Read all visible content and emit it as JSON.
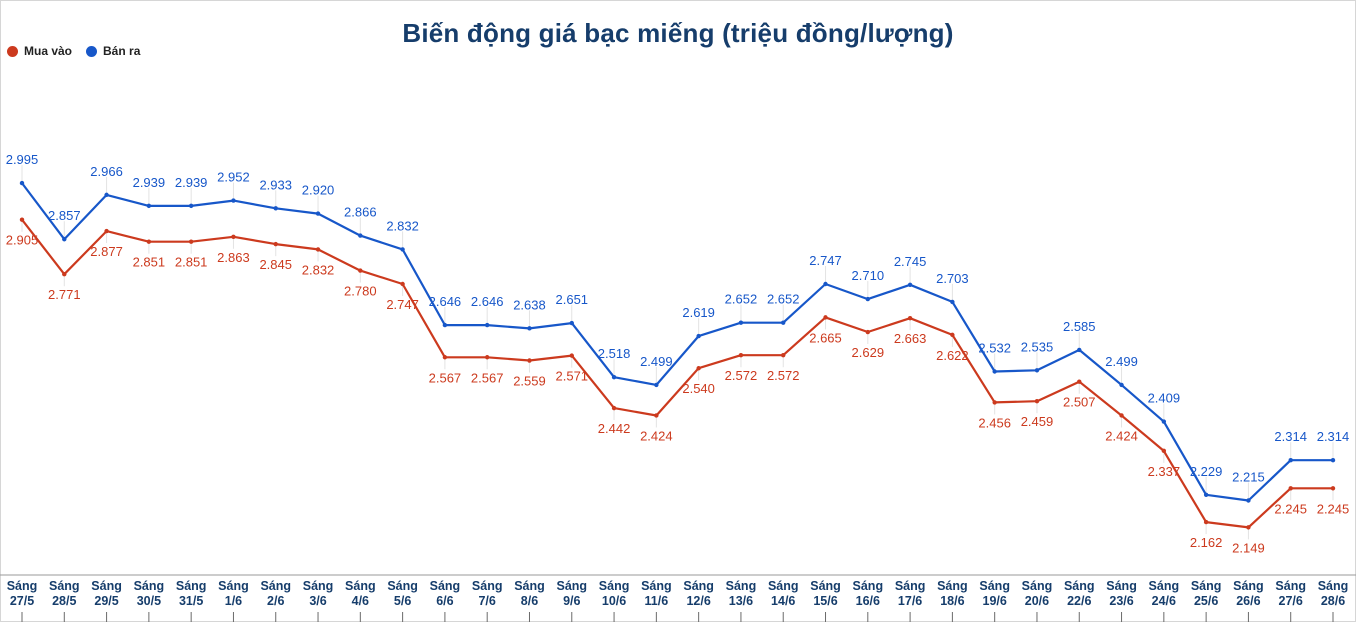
{
  "chart_data": {
    "type": "line",
    "title": "Biến động giá bạc miếng (triệu đồng/lượng)",
    "xlabel": "",
    "ylabel": "",
    "ylim": [
      2.0,
      3.15
    ],
    "grid": false,
    "legend_position": "top-left",
    "categories": [
      [
        "Sáng",
        "27/5"
      ],
      [
        "Sáng",
        "28/5"
      ],
      [
        "Sáng",
        "29/5"
      ],
      [
        "Sáng",
        "30/5"
      ],
      [
        "Sáng",
        "31/5"
      ],
      [
        "Sáng",
        "1/6"
      ],
      [
        "Sáng",
        "2/6"
      ],
      [
        "Sáng",
        "3/6"
      ],
      [
        "Sáng",
        "4/6"
      ],
      [
        "Sáng",
        "5/6"
      ],
      [
        "Sáng",
        "6/6"
      ],
      [
        "Sáng",
        "7/6"
      ],
      [
        "Sáng",
        "8/6"
      ],
      [
        "Sáng",
        "9/6"
      ],
      [
        "Sáng",
        "10/6"
      ],
      [
        "Sáng",
        "11/6"
      ],
      [
        "Sáng",
        "12/6"
      ],
      [
        "Sáng",
        "13/6"
      ],
      [
        "Sáng",
        "14/6"
      ],
      [
        "Sáng",
        "15/6"
      ],
      [
        "Sáng",
        "16/6"
      ],
      [
        "Sáng",
        "17/6"
      ],
      [
        "Sáng",
        "18/6"
      ],
      [
        "Sáng",
        "19/6"
      ],
      [
        "Sáng",
        "20/6"
      ],
      [
        "Sáng",
        "22/6"
      ],
      [
        "Sáng",
        "23/6"
      ],
      [
        "Sáng",
        "24/6"
      ],
      [
        "Sáng",
        "25/6"
      ],
      [
        "Sáng",
        "26/6"
      ],
      [
        "Sáng",
        "27/6"
      ],
      [
        "Sáng",
        "28/6"
      ]
    ],
    "series": [
      {
        "name": "Mua vào",
        "color": "#cc3a1e",
        "values": [
          2.905,
          2.771,
          2.877,
          2.851,
          2.851,
          2.863,
          2.845,
          2.832,
          2.78,
          2.747,
          2.567,
          2.567,
          2.559,
          2.571,
          2.442,
          2.424,
          2.54,
          2.572,
          2.572,
          2.665,
          2.629,
          2.663,
          2.622,
          2.456,
          2.459,
          2.507,
          2.424,
          2.337,
          2.162,
          2.149,
          2.245,
          2.245
        ],
        "labels": [
          "2.905",
          "2.771",
          "2.877",
          "2.851",
          "2.851",
          "2.863",
          "2.845",
          "2.832",
          "2.780",
          "2.747",
          "2.567",
          "2.567",
          "2.559",
          "2.571",
          "2.442",
          "2.424",
          "2.540",
          "2.572",
          "2.572",
          "2.665",
          "2.629",
          "2.663",
          "2.622",
          "2.456",
          "2.459",
          "2.507",
          "2.424",
          "2.337",
          "2.162",
          "2.149",
          "2.245",
          "2.245"
        ]
      },
      {
        "name": "Bán ra",
        "color": "#1757c9",
        "values": [
          2.995,
          2.857,
          2.966,
          2.939,
          2.939,
          2.952,
          2.933,
          2.92,
          2.866,
          2.832,
          2.646,
          2.646,
          2.638,
          2.651,
          2.518,
          2.499,
          2.619,
          2.652,
          2.652,
          2.747,
          2.71,
          2.745,
          2.703,
          2.532,
          2.535,
          2.585,
          2.499,
          2.409,
          2.229,
          2.215,
          2.314,
          2.314
        ],
        "labels": [
          "2.995",
          "2.857",
          "2.966",
          "2.939",
          "2.939",
          "2.952",
          "2.933",
          "2.920",
          "2.866",
          "2.832",
          "2.646",
          "2.646",
          "2.638",
          "2.651",
          "2.518",
          "2.499",
          "2.619",
          "2.652",
          "2.652",
          "2.747",
          "2.710",
          "2.745",
          "2.703",
          "2.532",
          "2.535",
          "2.585",
          "2.499",
          "2.409",
          "2.229",
          "2.215",
          "2.314",
          "2.314"
        ]
      }
    ]
  }
}
